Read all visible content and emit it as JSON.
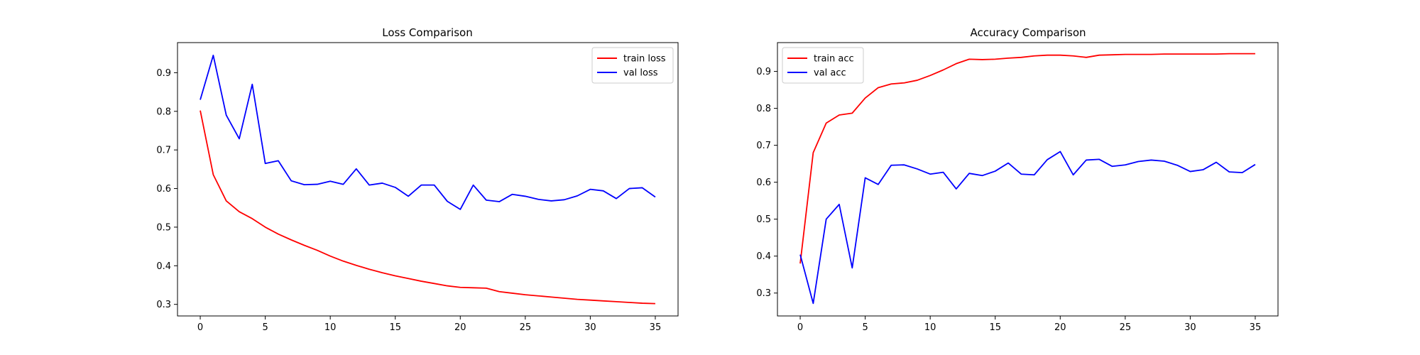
{
  "chart_data": [
    {
      "type": "line",
      "title": "Loss Comparison",
      "xlabel": "",
      "ylabel": "",
      "xlim": [
        -1.75,
        36.75
      ],
      "ylim": [
        0.27,
        0.978
      ],
      "xticks": [
        0,
        5,
        10,
        15,
        20,
        25,
        30,
        35
      ],
      "yticks": [
        0.3,
        0.4,
        0.5,
        0.6,
        0.7,
        0.8,
        0.9
      ],
      "legend": "upper right",
      "grid": false,
      "x": [
        0,
        1,
        2,
        3,
        4,
        5,
        6,
        7,
        8,
        9,
        10,
        11,
        12,
        13,
        14,
        15,
        16,
        17,
        18,
        19,
        20,
        21,
        22,
        23,
        24,
        25,
        26,
        27,
        28,
        29,
        30,
        31,
        32,
        33,
        34,
        35
      ],
      "series": [
        {
          "name": "train loss",
          "color": "#ff0000",
          "values": [
            0.802,
            0.636,
            0.568,
            0.54,
            0.522,
            0.5,
            0.482,
            0.467,
            0.453,
            0.44,
            0.425,
            0.412,
            0.401,
            0.391,
            0.382,
            0.374,
            0.367,
            0.36,
            0.354,
            0.348,
            0.344,
            0.343,
            0.342,
            0.333,
            0.329,
            0.325,
            0.322,
            0.319,
            0.316,
            0.313,
            0.311,
            0.309,
            0.307,
            0.305,
            0.303,
            0.302
          ]
        },
        {
          "name": "val loss",
          "color": "#0000ff",
          "values": [
            0.83,
            0.945,
            0.79,
            0.729,
            0.87,
            0.665,
            0.672,
            0.62,
            0.61,
            0.611,
            0.619,
            0.611,
            0.651,
            0.609,
            0.614,
            0.603,
            0.58,
            0.609,
            0.609,
            0.567,
            0.546,
            0.609,
            0.57,
            0.566,
            0.585,
            0.58,
            0.572,
            0.568,
            0.571,
            0.581,
            0.598,
            0.594,
            0.574,
            0.6,
            0.602,
            0.578
          ]
        }
      ]
    },
    {
      "type": "line",
      "title": "Accuracy Comparison",
      "xlabel": "",
      "ylabel": "",
      "xlim": [
        -1.75,
        36.75
      ],
      "ylim": [
        0.238,
        0.978
      ],
      "xticks": [
        0,
        5,
        10,
        15,
        20,
        25,
        30,
        35
      ],
      "yticks": [
        0.3,
        0.4,
        0.5,
        0.6,
        0.7,
        0.8,
        0.9
      ],
      "legend": "upper left",
      "grid": false,
      "x": [
        0,
        1,
        2,
        3,
        4,
        5,
        6,
        7,
        8,
        9,
        10,
        11,
        12,
        13,
        14,
        15,
        16,
        17,
        18,
        19,
        20,
        21,
        22,
        23,
        24,
        25,
        26,
        27,
        28,
        29,
        30,
        31,
        32,
        33,
        34,
        35
      ],
      "series": [
        {
          "name": "train acc",
          "color": "#ff0000",
          "values": [
            0.38,
            0.68,
            0.76,
            0.782,
            0.787,
            0.828,
            0.856,
            0.866,
            0.869,
            0.876,
            0.889,
            0.904,
            0.921,
            0.933,
            0.932,
            0.933,
            0.936,
            0.938,
            0.942,
            0.944,
            0.944,
            0.942,
            0.938,
            0.944,
            0.945,
            0.946,
            0.946,
            0.946,
            0.947,
            0.947,
            0.947,
            0.947,
            0.947,
            0.948,
            0.948,
            0.948
          ]
        },
        {
          "name": "val acc",
          "color": "#0000ff",
          "values": [
            0.404,
            0.272,
            0.5,
            0.54,
            0.368,
            0.612,
            0.594,
            0.646,
            0.647,
            0.636,
            0.622,
            0.627,
            0.582,
            0.624,
            0.618,
            0.63,
            0.652,
            0.622,
            0.62,
            0.661,
            0.683,
            0.62,
            0.66,
            0.662,
            0.643,
            0.647,
            0.656,
            0.66,
            0.657,
            0.646,
            0.629,
            0.634,
            0.654,
            0.628,
            0.626,
            0.648
          ]
        }
      ]
    }
  ]
}
